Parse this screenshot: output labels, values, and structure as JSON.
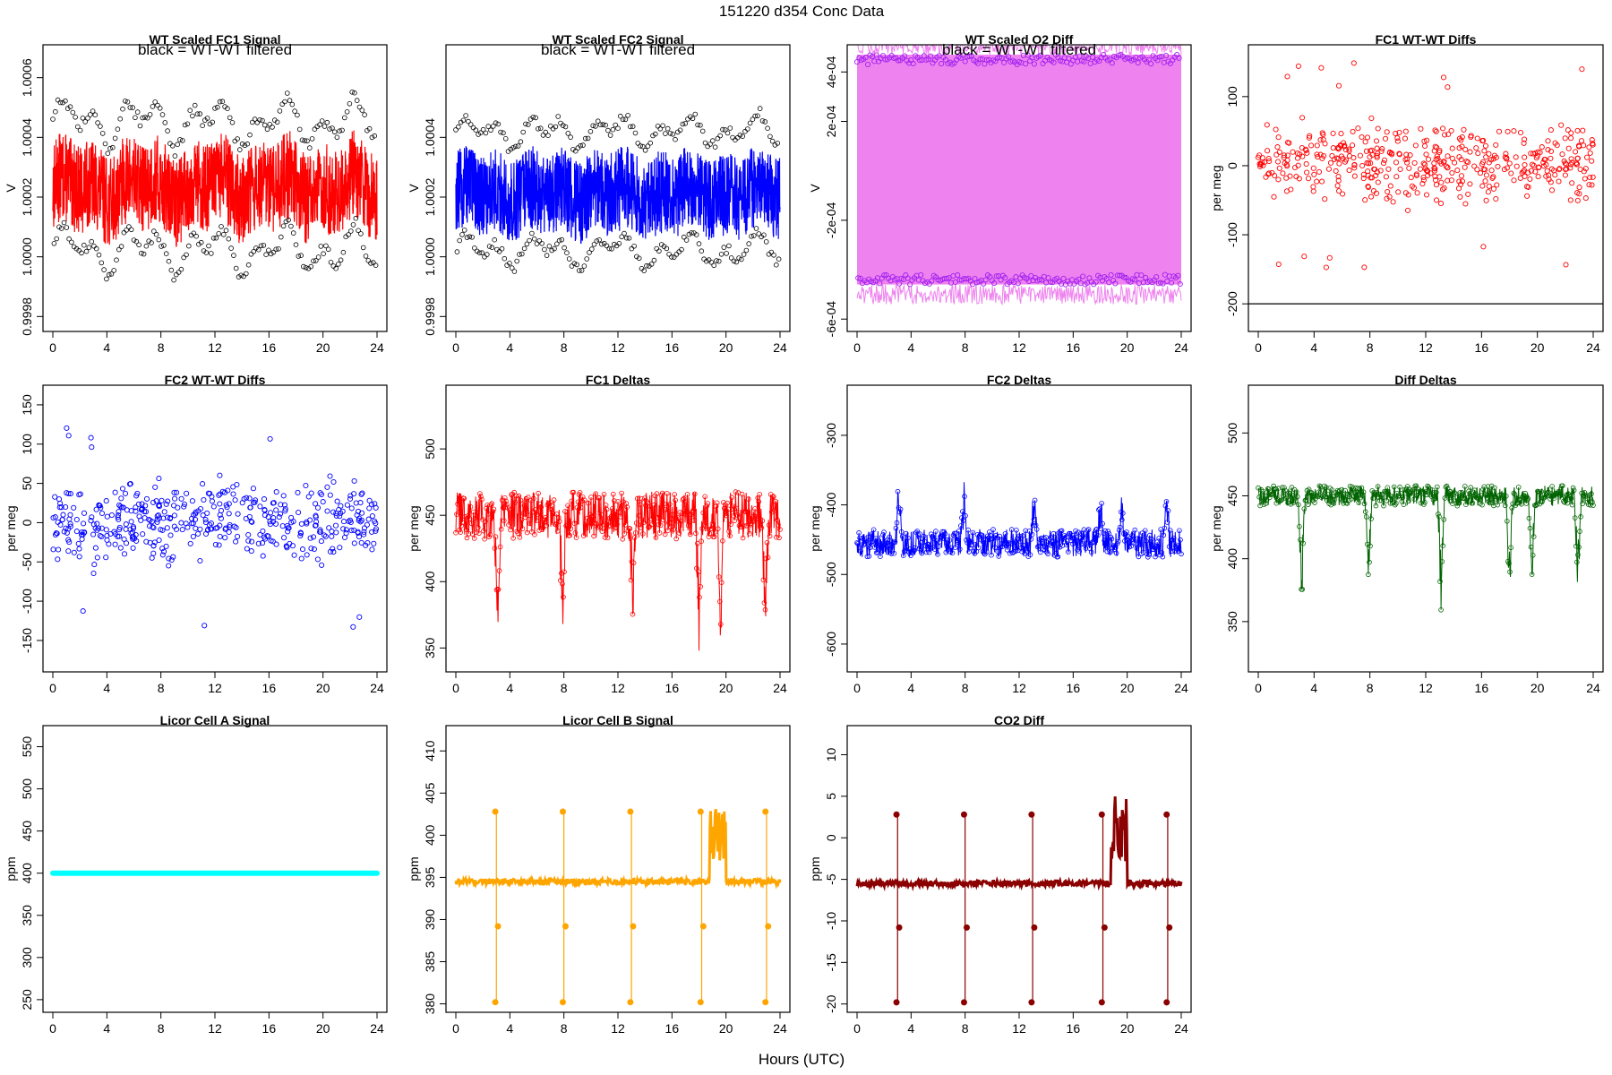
{
  "page": {
    "title": "151220   d354   Conc Data",
    "xlabel": "Hours (UTC)"
  },
  "chart_data": [
    {
      "id": "p1",
      "type": "line",
      "title": "WT Scaled FC1 Signal",
      "subtitle": "black = WT-WT filtered",
      "xlabel": "",
      "ylabel": "V",
      "xlim": [
        0,
        24
      ],
      "xticks": [
        0,
        4,
        8,
        12,
        16,
        20,
        24
      ],
      "ylim": [
        0.99975,
        1.00071
      ],
      "yticks": [
        0.9998,
        1.0,
        1.0002,
        1.0004,
        1.0006
      ],
      "ytick_labels": [
        "0.9998",
        "1.0000",
        "1.0002",
        "1.0004",
        "1.0006"
      ],
      "series": [
        {
          "color": "#ff0000",
          "style": "band-line",
          "center": 1.00023,
          "band": 0.00015,
          "wave": 0.00012
        }
      ],
      "overlay": {
        "color": "#000000",
        "style": "points-two-bands",
        "upper": 1.00045,
        "lower": 1.00002
      }
    },
    {
      "id": "p2",
      "type": "line",
      "title": "WT Scaled FC2 Signal",
      "subtitle": "black = WT-WT filtered",
      "xlabel": "",
      "ylabel": "V",
      "xlim": [
        0,
        24
      ],
      "xticks": [
        0,
        4,
        8,
        12,
        16,
        20,
        24
      ],
      "ylim": [
        0.99975,
        1.00071
      ],
      "yticks": [
        0.9998,
        1.0,
        1.0002,
        1.0004
      ],
      "ytick_labels": [
        "0.9998",
        "1.0000",
        "1.0002",
        "1.0004"
      ],
      "series": [
        {
          "color": "#0000ff",
          "style": "band-line",
          "center": 1.00021,
          "band": 0.00014,
          "wave": 8e-05
        }
      ],
      "overlay": {
        "color": "#000000",
        "style": "points-two-bands",
        "upper": 1.00042,
        "lower": 1.00002
      }
    },
    {
      "id": "p3",
      "type": "line",
      "title": "WT Scaled O2 Diff",
      "subtitle": "black = WT-WT filtered",
      "xlabel": "",
      "ylabel": "V",
      "xlim": [
        0,
        24
      ],
      "xticks": [
        0,
        4,
        8,
        12,
        16,
        20,
        24
      ],
      "ylim": [
        -0.00065,
        0.00051
      ],
      "yticks": [
        -0.0006,
        -0.0002,
        0.0002,
        0.0004
      ],
      "ytick_labels": [
        "-6e-04",
        "-2e-04",
        "2e-04",
        "4e-04"
      ],
      "series": [
        {
          "color": "#ee82ee",
          "style": "fill-band",
          "upper": 0.00047,
          "lower": -0.00046
        }
      ],
      "overlay": {
        "color": "#a020f0",
        "style": "points-two-bands",
        "upper": 0.00045,
        "lower": -0.00044
      }
    },
    {
      "id": "p4",
      "type": "scatter",
      "title": "FC1 WT-WT Diffs",
      "xlabel": "",
      "ylabel": "per meg",
      "xlim": [
        0,
        24
      ],
      "xticks": [
        0,
        4,
        8,
        12,
        16,
        20,
        24
      ],
      "ylim": [
        -240,
        175
      ],
      "yticks": [
        -200,
        -100,
        0,
        100
      ],
      "ytick_labels": [
        "-200",
        "-100",
        "0",
        "100"
      ],
      "series": [
        {
          "color": "#ff0000",
          "style": "points",
          "center": 5,
          "spread": 45
        }
      ],
      "hline": {
        "y": -200,
        "color": "#000000"
      }
    },
    {
      "id": "p5",
      "type": "scatter",
      "title": "FC2 WT-WT Diffs",
      "xlabel": "",
      "ylabel": "per meg",
      "xlim": [
        0,
        24
      ],
      "xticks": [
        0,
        4,
        8,
        12,
        16,
        20,
        24
      ],
      "ylim": [
        -190,
        175
      ],
      "yticks": [
        -150,
        -100,
        -50,
        0,
        50,
        100,
        150
      ],
      "ytick_labels": [
        "-150",
        "-100",
        "-50",
        "0",
        "50",
        "100",
        "150"
      ],
      "series": [
        {
          "color": "#0000ff",
          "style": "points",
          "center": 0,
          "spread": 40
        }
      ]
    },
    {
      "id": "p6",
      "type": "line",
      "title": "FC1 Deltas",
      "xlabel": "",
      "ylabel": "per meg",
      "xlim": [
        0,
        24
      ],
      "xticks": [
        0,
        4,
        8,
        12,
        16,
        20,
        24
      ],
      "ylim": [
        332,
        548
      ],
      "yticks": [
        350,
        400,
        450,
        500
      ],
      "ytick_labels": [
        "350",
        "400",
        "450",
        "500"
      ],
      "series": [
        {
          "color": "#ff0000",
          "style": "points-line",
          "center": 450,
          "spread": 18,
          "spike_dir": -1,
          "spike_amp": 80
        }
      ]
    },
    {
      "id": "p7",
      "type": "line",
      "title": "FC2 Deltas",
      "xlabel": "",
      "ylabel": "per meg",
      "xlim": [
        0,
        24
      ],
      "xticks": [
        0,
        4,
        8,
        12,
        16,
        20,
        24
      ],
      "ylim": [
        -640,
        -228
      ],
      "yticks": [
        -600,
        -500,
        -400,
        -300
      ],
      "ytick_labels": [
        "-600",
        "-500",
        "-400",
        "-300"
      ],
      "series": [
        {
          "color": "#0000ff",
          "style": "points-line",
          "center": -455,
          "spread": 20,
          "spike_dir": 1,
          "spike_amp": 70
        }
      ]
    },
    {
      "id": "p8",
      "type": "line",
      "title": "Diff Deltas",
      "xlabel": "",
      "ylabel": "per meg",
      "xlim": [
        0,
        24
      ],
      "xticks": [
        0,
        4,
        8,
        12,
        16,
        20,
        24
      ],
      "ylim": [
        310,
        538
      ],
      "yticks": [
        350,
        400,
        450,
        500
      ],
      "ytick_labels": [
        "350",
        "400",
        "450",
        "500"
      ],
      "series": [
        {
          "color": "#006400",
          "style": "points-line",
          "center": 450,
          "spread": 8,
          "spike_dir": -1,
          "spike_amp": 75
        }
      ]
    },
    {
      "id": "p9",
      "type": "line",
      "title": "Licor Cell A Signal",
      "xlabel": "",
      "ylabel": "ppm",
      "xlim": [
        0,
        24
      ],
      "xticks": [
        0,
        4,
        8,
        12,
        16,
        20,
        24
      ],
      "ylim": [
        235,
        575
      ],
      "yticks": [
        250,
        300,
        350,
        400,
        450,
        500,
        550
      ],
      "ytick_labels": [
        "250",
        "300",
        "350",
        "400",
        "450",
        "500",
        "550"
      ],
      "series": [
        {
          "color": "#00ffff",
          "style": "flat",
          "value": 400
        }
      ]
    },
    {
      "id": "p10",
      "type": "line",
      "title": "Licor Cell B Signal",
      "xlabel": "",
      "ylabel": "ppm",
      "xlim": [
        0,
        24
      ],
      "xticks": [
        0,
        4,
        8,
        12,
        16,
        20,
        24
      ],
      "ylim": [
        379,
        413
      ],
      "yticks": [
        380,
        385,
        390,
        395,
        400,
        405,
        410
      ],
      "ytick_labels": [
        "380",
        "385",
        "390",
        "395",
        "400",
        "405",
        "410"
      ],
      "series": [
        {
          "color": "#ffa500",
          "style": "licor",
          "base": 394.5,
          "hi": 402.8,
          "lo": 380.2,
          "mid": 389.2
        }
      ]
    },
    {
      "id": "p11",
      "type": "line",
      "title": "CO2 Diff",
      "xlabel": "",
      "ylabel": "ppm",
      "xlim": [
        0,
        24
      ],
      "xticks": [
        0,
        4,
        8,
        12,
        16,
        20,
        24
      ],
      "ylim": [
        -21,
        13.5
      ],
      "yticks": [
        -20,
        -15,
        -10,
        -5,
        0,
        5,
        10
      ],
      "ytick_labels": [
        "-20",
        "-15",
        "-10",
        "-5",
        "0",
        "5",
        "10"
      ],
      "series": [
        {
          "color": "#8b0000",
          "style": "licor",
          "base": -5.5,
          "hi": 2.8,
          "lo": -19.8,
          "mid": -10.8
        }
      ]
    }
  ]
}
